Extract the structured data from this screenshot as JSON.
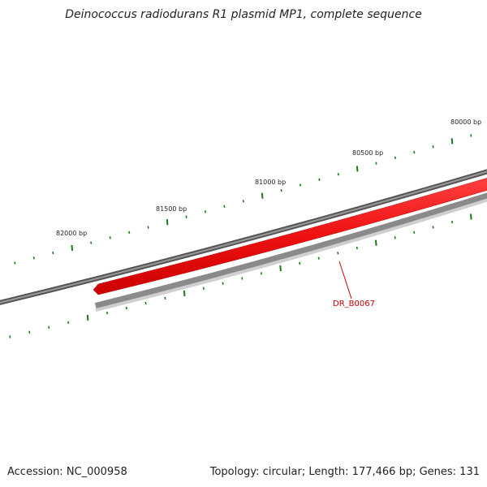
{
  "title": "Deinococcus radiodurans R1 plasmid MP1, complete sequence",
  "footer": {
    "accession": "Accession: NC_000958",
    "summary": "Topology: circular; Length: 177,466 bp; Genes: 131"
  },
  "scale": {
    "ticks": [
      {
        "bp": 80000,
        "label": "80000 bp"
      },
      {
        "bp": 80500,
        "label": "80500 bp"
      },
      {
        "bp": 81000,
        "label": "81000 bp"
      },
      {
        "bp": 81500,
        "label": "81500 bp"
      },
      {
        "bp": 82000,
        "label": "82000 bp"
      }
    ],
    "tick_color": "#1a7a1a"
  },
  "genes": [
    {
      "label": "DR_B0067",
      "color": "#ee1111",
      "strand": "minus"
    }
  ],
  "colors": {
    "backbone": "#777777",
    "lower_track": "#999999",
    "gene": "#ee1111",
    "gene_label": "#cc0000",
    "ticks": "#1a7a1a"
  }
}
